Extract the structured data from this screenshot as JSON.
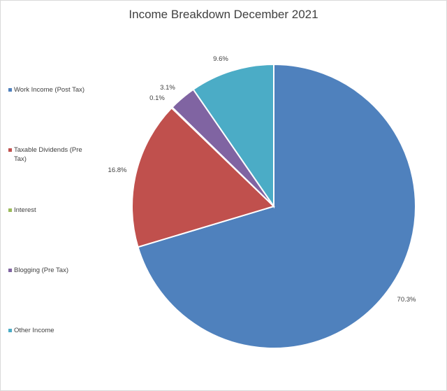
{
  "chart_data": {
    "type": "pie",
    "title": "Income Breakdown December 2021",
    "categories": [
      "Work Income (Post Tax)",
      "Taxable Dividends (Pre Tax)",
      "Interest",
      "Blogging (Pre Tax)",
      "Other Income"
    ],
    "values": [
      70.3,
      16.8,
      0.1,
      3.1,
      9.6
    ],
    "data_labels": [
      "70.3%",
      "16.8%",
      "0.1%",
      "3.1%",
      "9.6%"
    ],
    "colors": [
      "#4f81bd",
      "#c0504d",
      "#9bbb59",
      "#8064a2",
      "#4bacc6"
    ],
    "legend_position": "left",
    "start_angle": "12 o'clock",
    "direction": "clockwise"
  }
}
